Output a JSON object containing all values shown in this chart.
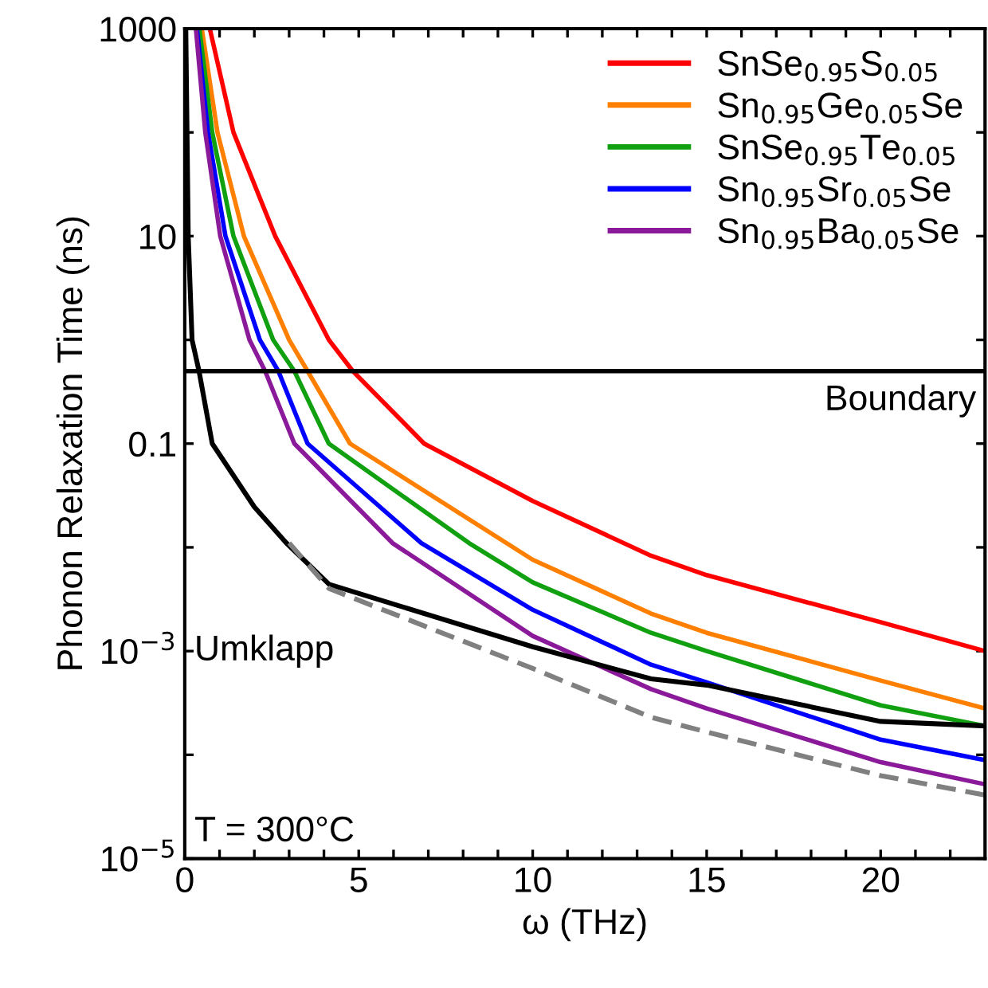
{
  "chart_data": {
    "type": "line",
    "xlabel": "ω (THz)",
    "ylabel": "Phonon Relaxation Time (ns)",
    "log": "y",
    "xlim": [
      0,
      23
    ],
    "ylim": [
      1e-05,
      1000
    ],
    "xticks": [
      0,
      {
        "value": 1,
        "label": null
      },
      {
        "value": 2,
        "label": null
      },
      {
        "value": 3,
        "label": null
      },
      {
        "value": 4,
        "label": null
      },
      5,
      {
        "value": 6,
        "label": null
      },
      {
        "value": 7,
        "label": null
      },
      {
        "value": 8,
        "label": null
      },
      {
        "value": 9,
        "label": null
      },
      10,
      {
        "value": 11,
        "label": null
      },
      {
        "value": 12,
        "label": null
      },
      {
        "value": 13,
        "label": null
      },
      {
        "value": 14,
        "label": null
      },
      15,
      {
        "value": 16,
        "label": null
      },
      {
        "value": 17,
        "label": null
      },
      {
        "value": 18,
        "label": null
      },
      {
        "value": 19,
        "label": null
      },
      20,
      {
        "value": 21,
        "label": null
      },
      {
        "value": 22,
        "label": null
      }
    ],
    "yticks": [
      {
        "value": 1e-05,
        "label": "10$^{−5}$"
      },
      {
        "value": 0.0001,
        "label": null
      },
      {
        "value": 0.001,
        "label": "10$^{−3}$"
      },
      {
        "value": 0.01,
        "label": null
      },
      0.1,
      {
        "value": 1,
        "label": null
      },
      10,
      {
        "value": 100,
        "label": null
      },
      1000
    ],
    "grid": false,
    "legend": "top right",
    "line_style": "solid",
    "marker": "none",
    "series": [
      {
        "name": "SnSe$_{0.95}$S$_{0.05}$",
        "color": "#ff0000",
        "x": [
          0.72,
          1.4,
          2.6,
          4.14,
          4.83,
          6.88,
          10,
          13.4,
          15,
          20,
          23
        ],
        "values": [
          1000,
          100,
          10,
          1,
          0.5,
          0.1,
          0.028,
          0.0083,
          0.0054,
          0.0019,
          0.001
        ]
      },
      {
        "name": "Sn$_{0.95}$Ge$_{0.05}$Se",
        "color": "#ff8000",
        "x": [
          0.49,
          0.94,
          1.7,
          3.0,
          3.53,
          4.75,
          10,
          13.4,
          15,
          20,
          23
        ],
        "values": [
          1000,
          100,
          10,
          1,
          0.5,
          0.1,
          0.0076,
          0.0023,
          0.0015,
          0.00052,
          0.00028
        ]
      },
      {
        "name": "SnSe$_{0.95}$Te$_{0.05}$",
        "color": "#10a010",
        "x": [
          0.42,
          0.79,
          1.4,
          2.54,
          3.15,
          4.14,
          8.17,
          10,
          13.4,
          15,
          20,
          23
        ],
        "values": [
          1000,
          100,
          10,
          1,
          0.5,
          0.1,
          0.011,
          0.0046,
          0.0015,
          0.001,
          0.0003,
          0.00019
        ]
      },
      {
        "name": "Sn$_{0.95}$Sr$_{0.05}$Se",
        "color": "#0000ff",
        "x": [
          0.35,
          0.67,
          1.17,
          2.16,
          2.69,
          3.53,
          6.8,
          10,
          13.4,
          15,
          20,
          23
        ],
        "values": [
          1000,
          100,
          10,
          1,
          0.5,
          0.1,
          0.011,
          0.0025,
          0.00074,
          0.0005,
          0.00014,
          8.9e-05
        ]
      },
      {
        "name": "Sn$_{0.95}$Ba$_{0.05}$Se",
        "color": "#8b1a9b",
        "x": [
          0.32,
          0.59,
          1.02,
          1.86,
          2.31,
          3.15,
          5.97,
          10,
          13.4,
          15,
          20,
          23
        ],
        "values": [
          1000,
          100,
          10,
          1,
          0.5,
          0.1,
          0.011,
          0.0014,
          0.00043,
          0.00028,
          8.5e-05,
          5.2e-05
        ]
      },
      {
        "color": "#000000",
        "x": [
          0.03,
          0.1,
          0.21,
          0.41,
          0.79,
          2.0,
          2.92,
          4.15,
          10,
          13.4,
          15,
          20,
          23
        ],
        "values": [
          1000,
          10,
          1,
          0.5,
          0.1,
          0.0245,
          0.011,
          0.0044,
          0.0011,
          0.00054,
          0.00047,
          0.00021,
          0.00019
        ]
      },
      {
        "color": "#808080",
        "line_style": "dashed",
        "x": [
          3.0,
          4.15,
          10,
          13.4,
          15,
          20,
          23
        ],
        "values": [
          0.011,
          0.004,
          0.00068,
          0.00023,
          0.000166,
          6.3e-05,
          4.1e-05
        ]
      }
    ],
    "ref_lines": [
      {
        "axis": "y",
        "value": 0.5,
        "label": "Boundary",
        "color": "#000000"
      }
    ],
    "annotations": [
      "Umklapp",
      "T = 300°C"
    ]
  }
}
